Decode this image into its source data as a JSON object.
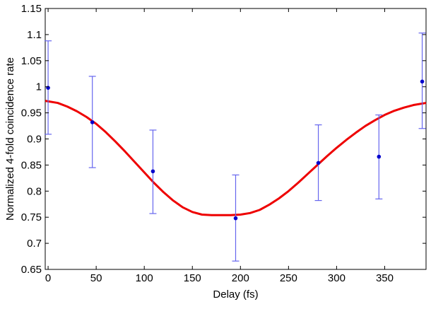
{
  "chart_data": {
    "type": "scatter",
    "title": "",
    "xlabel": "Delay (fs)",
    "ylabel": "Normalized 4-fold coincidence rate",
    "xlim": [
      -3,
      393
    ],
    "ylim": [
      0.65,
      1.15
    ],
    "xticks": [
      0,
      50,
      100,
      150,
      200,
      250,
      300,
      350
    ],
    "xtick_labels": [
      "0",
      "50",
      "100",
      "150",
      "200",
      "250",
      "300",
      "350"
    ],
    "yticks": [
      0.65,
      0.7,
      0.75,
      0.8,
      0.85,
      0.9,
      0.95,
      1.0,
      1.05,
      1.1,
      1.15
    ],
    "ytick_labels": [
      "0.65",
      "0.7",
      "0.75",
      "0.8",
      "0.85",
      "0.9",
      "0.95",
      "1",
      "1.05",
      "1.1",
      "1.15"
    ],
    "grid": false,
    "legend": "none",
    "colors": {
      "points": "#0000cc",
      "errorbars": "#6666ee",
      "fit": "#ee0000"
    },
    "points": [
      {
        "x": 0,
        "y": 0.998,
        "lower": 0.909,
        "upper": 1.088
      },
      {
        "x": 46,
        "y": 0.932,
        "lower": 0.845,
        "upper": 1.02
      },
      {
        "x": 109,
        "y": 0.838,
        "lower": 0.757,
        "upper": 0.917
      },
      {
        "x": 195,
        "y": 0.748,
        "lower": 0.666,
        "upper": 0.831
      },
      {
        "x": 281,
        "y": 0.854,
        "lower": 0.782,
        "upper": 0.927
      },
      {
        "x": 344,
        "y": 0.866,
        "lower": 0.785,
        "upper": 0.946
      },
      {
        "x": 389,
        "y": 1.01,
        "lower": 0.92,
        "upper": 1.103
      }
    ],
    "fit_curve": {
      "type": "line",
      "x": [
        -3,
        10,
        20,
        30,
        40,
        50,
        60,
        70,
        80,
        90,
        100,
        110,
        120,
        130,
        140,
        150,
        160,
        170,
        180,
        190,
        200,
        210,
        220,
        230,
        240,
        250,
        260,
        270,
        280,
        290,
        300,
        310,
        320,
        330,
        340,
        350,
        360,
        370,
        380,
        393
      ],
      "y": [
        0.973,
        0.969,
        0.962,
        0.953,
        0.942,
        0.929,
        0.913,
        0.895,
        0.876,
        0.856,
        0.836,
        0.816,
        0.798,
        0.782,
        0.769,
        0.76,
        0.755,
        0.754,
        0.754,
        0.754,
        0.755,
        0.758,
        0.764,
        0.774,
        0.786,
        0.8,
        0.816,
        0.833,
        0.85,
        0.867,
        0.883,
        0.898,
        0.912,
        0.925,
        0.936,
        0.946,
        0.954,
        0.96,
        0.965,
        0.969
      ]
    }
  }
}
